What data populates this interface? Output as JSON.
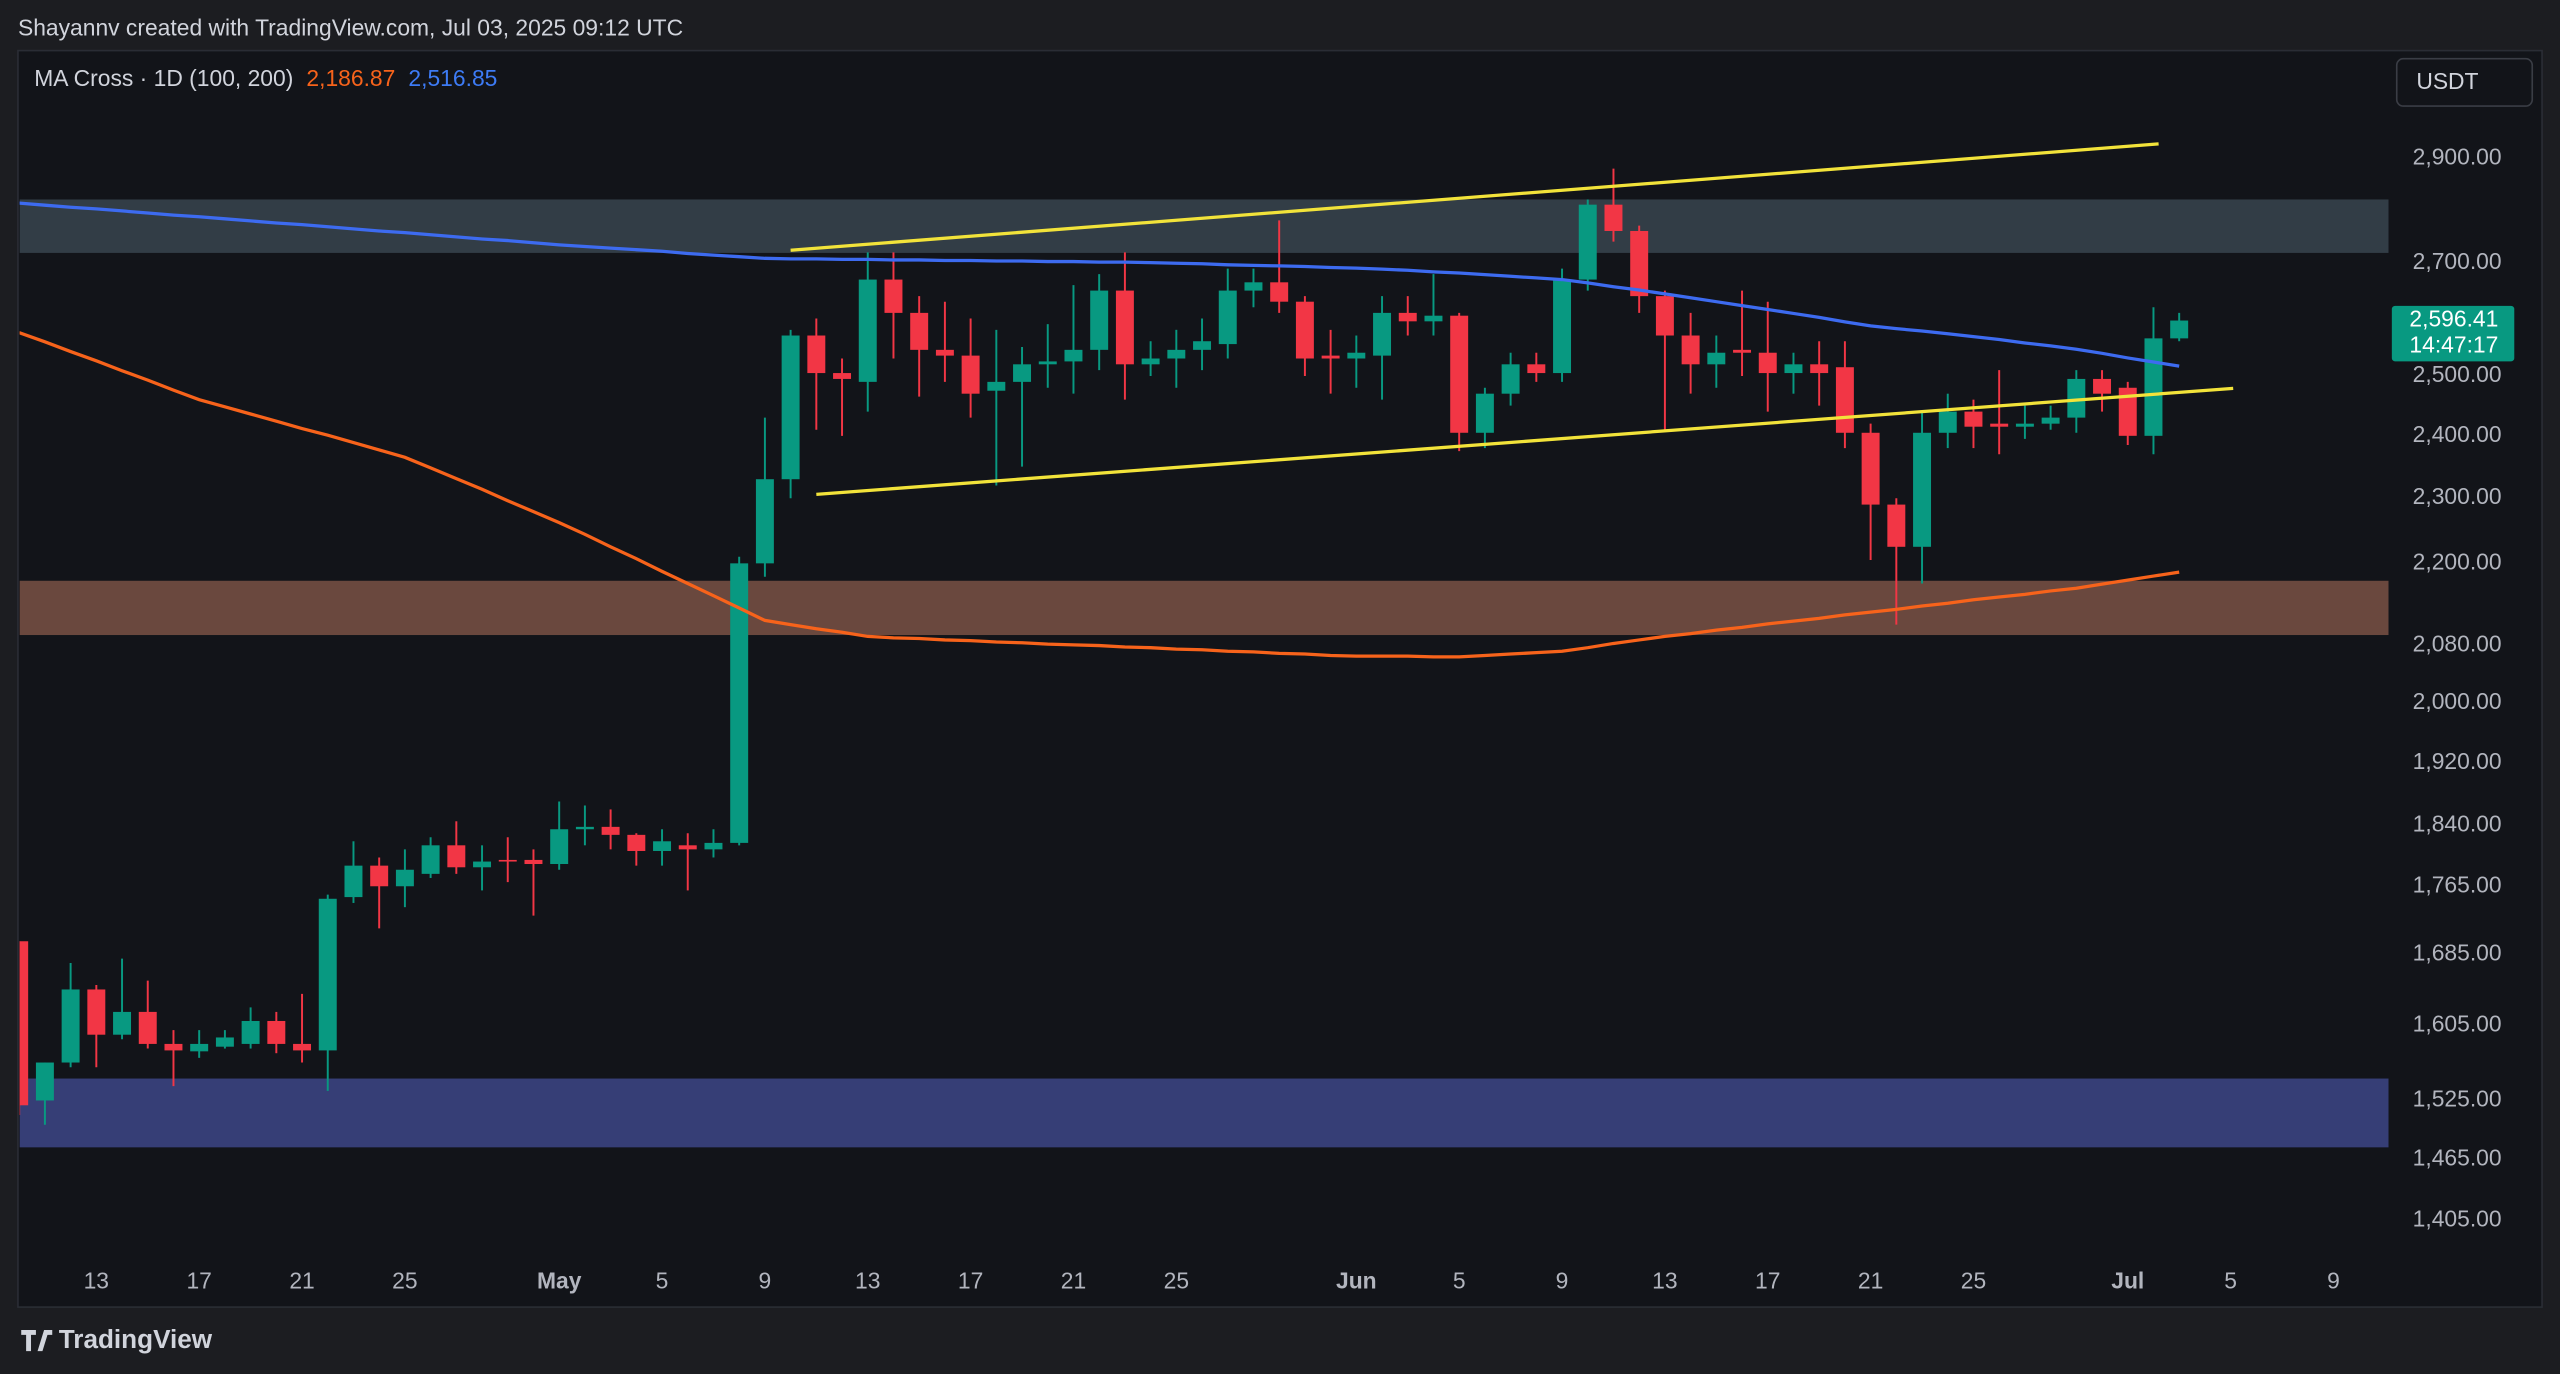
{
  "header": "Shayannv created with TradingView.com, Jul 03, 2025 09:12 UTC",
  "brand": "TradingView",
  "chart_data": {
    "type": "candlestick",
    "currency": "USDT",
    "indicator": {
      "title": "MA Cross · 1D (100, 200)",
      "values": [
        {
          "value": 2186.87,
          "label": "2,186.87",
          "color": "#f7631b"
        },
        {
          "value": 2516.85,
          "label": "2,516.85",
          "color": "#3d7bf5"
        }
      ]
    },
    "categories": [
      null,
      null,
      null,
      "13",
      null,
      null,
      null,
      "17",
      null,
      null,
      null,
      "21",
      null,
      null,
      null,
      "25",
      null,
      null,
      null,
      null,
      null,
      "May",
      null,
      null,
      null,
      "5",
      null,
      null,
      null,
      "9",
      null,
      null,
      null,
      "13",
      null,
      null,
      null,
      "17",
      null,
      null,
      null,
      "21",
      null,
      null,
      null,
      "25",
      null,
      null,
      null,
      null,
      null,
      null,
      "Jun",
      null,
      null,
      null,
      "5",
      null,
      null,
      null,
      "9",
      null,
      null,
      null,
      "13",
      null,
      null,
      null,
      "17",
      null,
      null,
      null,
      "21",
      null,
      null,
      null,
      "25",
      null,
      null,
      null,
      null,
      null,
      "Jul",
      null,
      null,
      null,
      "5",
      null,
      null,
      null,
      "9",
      null,
      null
    ],
    "open": [
      1700,
      1525,
      1565,
      1645,
      1595,
      1620,
      1585,
      1577,
      1582,
      1585,
      1610,
      1585,
      1578,
      1752,
      1790,
      1765,
      1780,
      1815,
      1788,
      1797,
      1797,
      1792,
      1835,
      1838,
      1828,
      1808,
      1815,
      1810,
      1818,
      2200,
      2330,
      2570,
      2505,
      2490,
      2670,
      2610,
      2545,
      2535,
      2475,
      2490,
      2520,
      2525,
      2545,
      2650,
      2520,
      2530,
      2545,
      2555,
      2650,
      2665,
      2630,
      2535,
      2530,
      2535,
      2610,
      2595,
      2605,
      2405,
      2470,
      2520,
      2505,
      2670,
      2810,
      2760,
      2640,
      2570,
      2520,
      2545,
      2540,
      2505,
      2520,
      2515,
      2405,
      2290,
      2225,
      2405,
      2440,
      2420,
      2415,
      2420,
      2430,
      2495,
      2480,
      2400,
      2565,
      null,
      null,
      null,
      null,
      null,
      null,
      null,
      null
    ],
    "high": [
      1700,
      1565,
      1675,
      1650,
      1680,
      1655,
      1600,
      1600,
      1600,
      1625,
      1620,
      1640,
      1755,
      1820,
      1800,
      1810,
      1825,
      1845,
      1815,
      1825,
      1810,
      1870,
      1865,
      1860,
      1830,
      1835,
      1830,
      1835,
      2210,
      2430,
      2580,
      2600,
      2530,
      2720,
      2720,
      2640,
      2630,
      2600,
      2580,
      2550,
      2590,
      2660,
      2680,
      2720,
      2560,
      2580,
      2600,
      2690,
      2690,
      2780,
      2640,
      2580,
      2570,
      2640,
      2640,
      2680,
      2610,
      2480,
      2540,
      2540,
      2690,
      2820,
      2880,
      2770,
      2650,
      2610,
      2570,
      2650,
      2630,
      2540,
      2560,
      2560,
      2420,
      2300,
      2440,
      2470,
      2460,
      2510,
      2450,
      2450,
      2510,
      2510,
      2490,
      2620,
      2610,
      null,
      null,
      null,
      null,
      null,
      null,
      null,
      null
    ],
    "low": [
      1510,
      1500,
      1560,
      1560,
      1590,
      1580,
      1540,
      1570,
      1580,
      1580,
      1575,
      1565,
      1535,
      1745,
      1715,
      1740,
      1775,
      1780,
      1760,
      1770,
      1730,
      1785,
      1815,
      1810,
      1790,
      1790,
      1760,
      1800,
      1815,
      2180,
      2300,
      2410,
      2400,
      2440,
      2530,
      2465,
      2490,
      2430,
      2320,
      2350,
      2480,
      2470,
      2510,
      2460,
      2500,
      2480,
      2510,
      2530,
      2620,
      2610,
      2500,
      2470,
      2480,
      2460,
      2570,
      2570,
      2375,
      2380,
      2450,
      2490,
      2490,
      2650,
      2740,
      2610,
      2410,
      2470,
      2480,
      2500,
      2440,
      2470,
      2450,
      2380,
      2205,
      2110,
      2170,
      2380,
      2380,
      2370,
      2395,
      2410,
      2405,
      2440,
      2385,
      2370,
      2560,
      null,
      null,
      null,
      null,
      null,
      null,
      null,
      null
    ],
    "close": [
      1520,
      1565,
      1645,
      1595,
      1620,
      1585,
      1578,
      1585,
      1592,
      1610,
      1585,
      1578,
      1750,
      1790,
      1765,
      1785,
      1815,
      1788,
      1795,
      1795,
      1792,
      1835,
      1838,
      1828,
      1808,
      1820,
      1810,
      1818,
      2200,
      2330,
      2570,
      2505,
      2495,
      2670,
      2610,
      2545,
      2535,
      2470,
      2490,
      2520,
      2525,
      2545,
      2650,
      2520,
      2530,
      2545,
      2560,
      2650,
      2665,
      2630,
      2530,
      2530,
      2540,
      2610,
      2595,
      2605,
      2405,
      2470,
      2520,
      2505,
      2670,
      2810,
      2760,
      2640,
      2570,
      2520,
      2540,
      2540,
      2505,
      2520,
      2505,
      2405,
      2290,
      2225,
      2405,
      2440,
      2415,
      2415,
      2420,
      2430,
      2495,
      2470,
      2400,
      2565,
      2596.41,
      null,
      null,
      null,
      null,
      null,
      null,
      null,
      null
    ],
    "up_color": "#089981",
    "down_color": "#f23645",
    "lines": [
      {
        "color": "#f7631b",
        "values": [
          2575,
          2559,
          2542,
          2526,
          2509,
          2493,
          2476,
          2460,
          2448,
          2436,
          2424,
          2412,
          2401,
          2389,
          2377,
          2365,
          2348,
          2331,
          2314,
          2296,
          2279,
          2262,
          2244,
          2225,
          2207,
          2188,
          2170,
          2152,
          2134,
          2116,
          2110,
          2104,
          2099,
          2093,
          2091,
          2090,
          2088,
          2087,
          2085,
          2084,
          2082,
          2081,
          2080,
          2078,
          2077,
          2075,
          2074,
          2072,
          2071,
          2069,
          2068,
          2066,
          2065,
          2065,
          2065,
          2064,
          2064,
          2066,
          2068,
          2070,
          2072,
          2077,
          2083,
          2088,
          2093,
          2097,
          2102,
          2106,
          2111,
          2115,
          2119,
          2124,
          2128,
          2132,
          2137,
          2141,
          2146,
          2150,
          2154,
          2159,
          2163,
          2169,
          2175,
          2181,
          2186.87,
          null,
          null,
          null,
          null,
          null,
          null,
          null,
          null
        ]
      },
      {
        "color": "#3d6bf0",
        "values": [
          2813,
          2809,
          2805,
          2802,
          2798,
          2794,
          2790,
          2787,
          2783,
          2779,
          2775,
          2772,
          2768,
          2764,
          2760,
          2757,
          2753,
          2749,
          2745,
          2742,
          2738,
          2734,
          2731,
          2728,
          2725,
          2722,
          2718,
          2715,
          2712,
          2709,
          2708,
          2708,
          2707,
          2707,
          2706,
          2706,
          2705,
          2705,
          2704,
          2704,
          2703,
          2703,
          2702,
          2702,
          2701,
          2700,
          2699,
          2697,
          2696,
          2695,
          2694,
          2692,
          2691,
          2689,
          2687,
          2684,
          2682,
          2679,
          2676,
          2673,
          2670,
          2664,
          2657,
          2651,
          2644,
          2637,
          2630,
          2623,
          2616,
          2609,
          2602,
          2594,
          2587,
          2582,
          2578,
          2573,
          2568,
          2563,
          2557,
          2552,
          2546,
          2539,
          2531,
          2524,
          2516.85,
          null,
          null,
          null,
          null,
          null,
          null,
          null,
          null
        ]
      }
    ],
    "trendlines": [
      {
        "color": "#f2e33a",
        "points": [
          [
            30,
            2724
          ],
          [
            83.2,
            2929
          ]
        ]
      },
      {
        "color": "#f2e33a",
        "points": [
          [
            31,
            2306
          ],
          [
            86.1,
            2479
          ]
        ]
      }
    ],
    "zones": [
      {
        "color": "#323d46",
        "range": [
          2719,
          2820
        ]
      },
      {
        "color": "#6a483e",
        "range": [
          2095,
          2174
        ]
      },
      {
        "color": "#363e76",
        "range": [
          1477,
          1548
        ]
      }
    ],
    "last_price": {
      "value": 2596.41,
      "label": "2,596.41",
      "countdown": "14:47:17"
    },
    "log_scale": true,
    "ylim": [
      1371,
      3118
    ],
    "yticks": [
      {
        "value": 2900,
        "label": "2,900.00"
      },
      {
        "value": 2700,
        "label": "2,700.00"
      },
      {
        "value": 2500,
        "label": "2,500.00"
      },
      {
        "value": 2400,
        "label": "2,400.00"
      },
      {
        "value": 2300,
        "label": "2,300.00"
      },
      {
        "value": 2200,
        "label": "2,200.00"
      },
      {
        "value": 2080,
        "label": "2,080.00"
      },
      {
        "value": 2000,
        "label": "2,000.00"
      },
      {
        "value": 1920,
        "label": "1,920.00"
      },
      {
        "value": 1840,
        "label": "1,840.00"
      },
      {
        "value": 1765,
        "label": "1,765.00"
      },
      {
        "value": 1685,
        "label": "1,685.00"
      },
      {
        "value": 1605,
        "label": "1,605.00"
      },
      {
        "value": 1525,
        "label": "1,525.00"
      },
      {
        "value": 1465,
        "label": "1,465.00"
      },
      {
        "value": 1405,
        "label": "1,405.00"
      }
    ]
  }
}
